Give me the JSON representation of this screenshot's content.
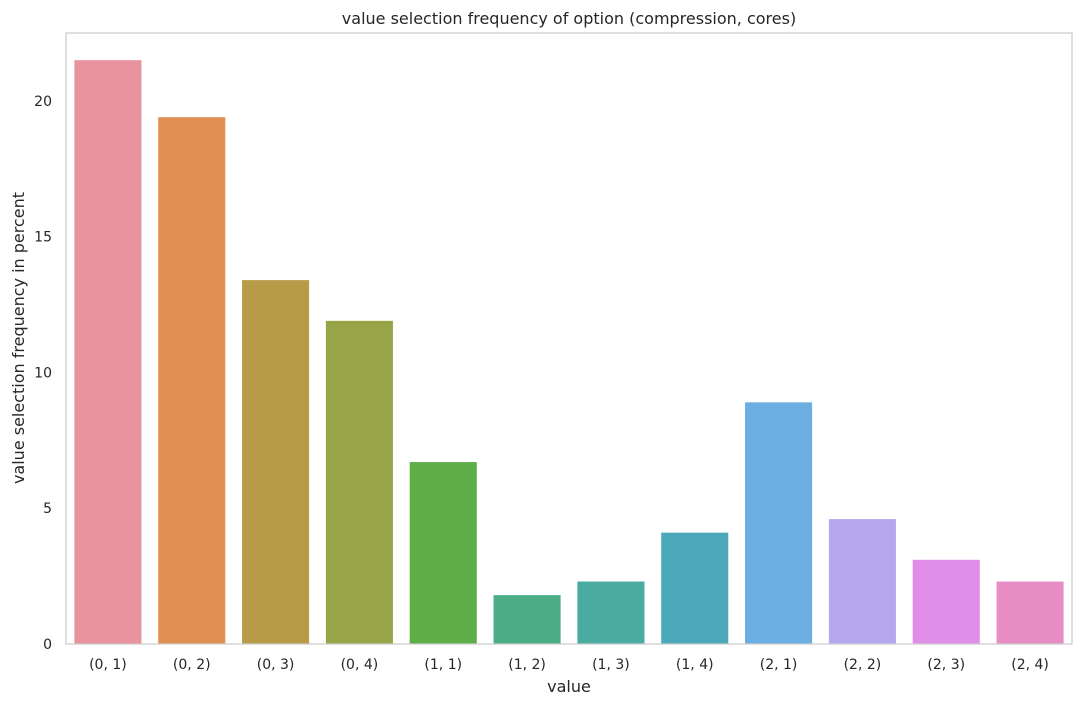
{
  "chart_data": {
    "type": "bar",
    "title": "value selection frequency of option (compression, cores)",
    "xlabel": "value",
    "ylabel": "value selection frequency in percent",
    "categories": [
      "(0, 1)",
      "(0, 2)",
      "(0, 3)",
      "(0, 4)",
      "(1, 1)",
      "(1, 2)",
      "(1, 3)",
      "(1, 4)",
      "(2, 1)",
      "(2, 2)",
      "(2, 3)",
      "(2, 4)"
    ],
    "values": [
      21.5,
      19.4,
      13.4,
      11.9,
      6.7,
      1.8,
      2.3,
      4.1,
      8.9,
      4.6,
      3.1,
      2.3
    ],
    "colors": [
      "#e8939f",
      "#e08f52",
      "#b89b47",
      "#98a448",
      "#5eae47",
      "#4bae85",
      "#4aaca0",
      "#4ca9ba",
      "#6aaee2",
      "#b6a8ee",
      "#e08ee9",
      "#e78cc5"
    ],
    "ylim": [
      0,
      22.5
    ],
    "yticks": [
      0,
      5,
      10,
      15,
      20
    ],
    "grid": false,
    "legend": "none"
  }
}
